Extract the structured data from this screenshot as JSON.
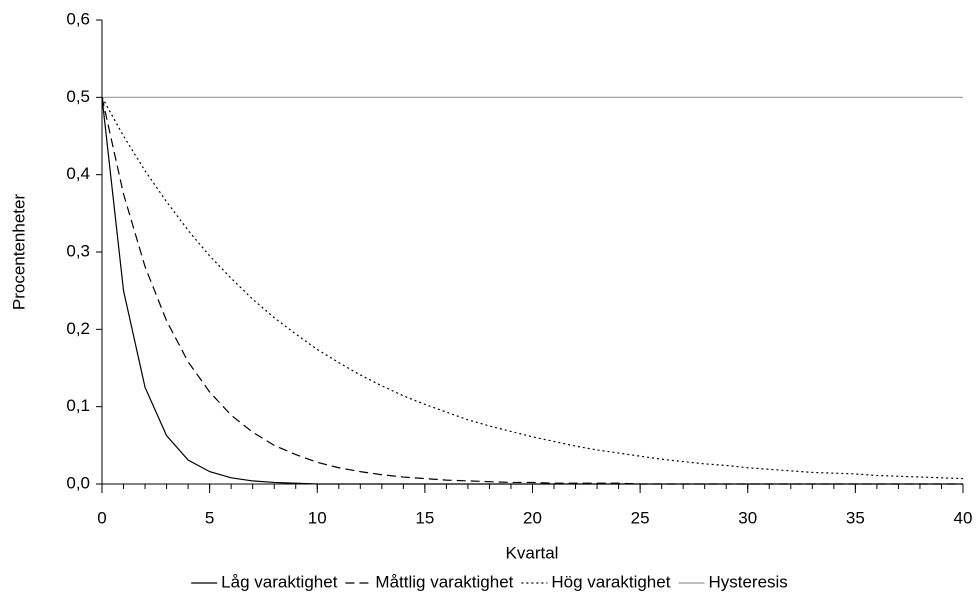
{
  "chart_data": {
    "type": "line",
    "x_label": "Kvartal",
    "y_label": "Procentenheter",
    "x": [
      0,
      1,
      2,
      3,
      4,
      5,
      6,
      7,
      8,
      9,
      10,
      11,
      12,
      13,
      14,
      15,
      16,
      17,
      18,
      19,
      20,
      21,
      22,
      23,
      24,
      25,
      26,
      27,
      28,
      29,
      30,
      31,
      32,
      33,
      34,
      35,
      36,
      37,
      38,
      39,
      40
    ],
    "series": [
      {
        "name": "Låg varaktighet",
        "color": "#000000",
        "line_style": "solid",
        "values": [
          0.5,
          0.25,
          0.125,
          0.0625,
          0.031,
          0.016,
          0.008,
          0.004,
          0.002,
          0.001,
          0,
          0,
          0,
          0,
          0,
          0,
          0,
          0,
          0,
          0,
          0,
          0,
          0,
          0,
          0,
          0,
          0,
          0,
          0,
          0,
          0,
          0,
          0,
          0,
          0,
          0,
          0,
          0,
          0,
          0,
          0
        ]
      },
      {
        "name": "Måttlig varaktighet",
        "color": "#000000",
        "line_style": "dashed",
        "values": [
          0.5,
          0.375,
          0.281,
          0.211,
          0.158,
          0.119,
          0.089,
          0.067,
          0.05,
          0.038,
          0.028,
          0.021,
          0.016,
          0.012,
          0.009,
          0.007,
          0.005,
          0.004,
          0.003,
          0.002,
          0.002,
          0.001,
          0.001,
          0.001,
          0.001,
          0,
          0,
          0,
          0,
          0,
          0,
          0,
          0,
          0,
          0,
          0,
          0,
          0,
          0,
          0,
          0
        ]
      },
      {
        "name": "Hög varaktighet",
        "color": "#000000",
        "line_style": "dotted",
        "values": [
          0.5,
          0.45,
          0.405,
          0.365,
          0.328,
          0.295,
          0.266,
          0.239,
          0.215,
          0.194,
          0.174,
          0.157,
          0.141,
          0.127,
          0.114,
          0.103,
          0.093,
          0.083,
          0.075,
          0.068,
          0.061,
          0.055,
          0.049,
          0.044,
          0.04,
          0.036,
          0.032,
          0.029,
          0.026,
          0.024,
          0.021,
          0.019,
          0.017,
          0.015,
          0.014,
          0.013,
          0.011,
          0.01,
          0.009,
          0.008,
          0.007
        ]
      },
      {
        "name": "Hysteresis",
        "color": "#999999",
        "line_style": "solid",
        "values": [
          0.5,
          0.5,
          0.5,
          0.5,
          0.5,
          0.5,
          0.5,
          0.5,
          0.5,
          0.5,
          0.5,
          0.5,
          0.5,
          0.5,
          0.5,
          0.5,
          0.5,
          0.5,
          0.5,
          0.5,
          0.5,
          0.5,
          0.5,
          0.5,
          0.5,
          0.5,
          0.5,
          0.5,
          0.5,
          0.5,
          0.5,
          0.5,
          0.5,
          0.5,
          0.5,
          0.5,
          0.5,
          0.5,
          0.5,
          0.5,
          0.5
        ]
      }
    ],
    "xlim": [
      0,
      40
    ],
    "xticks": [
      0,
      5,
      10,
      15,
      20,
      25,
      30,
      35,
      40
    ],
    "ylim": [
      0,
      0.6
    ],
    "yticks": [
      {
        "value": 0,
        "label": "0,0"
      },
      {
        "value": 0.1,
        "label": "0,1"
      },
      {
        "value": 0.2,
        "label": "0,2"
      },
      {
        "value": 0.3,
        "label": "0,3"
      },
      {
        "value": 0.4,
        "label": "0,4"
      },
      {
        "value": 0.5,
        "label": "0,5"
      },
      {
        "value": 0.6,
        "label": "0,6"
      }
    ],
    "grid": false,
    "legend": "bottom"
  }
}
